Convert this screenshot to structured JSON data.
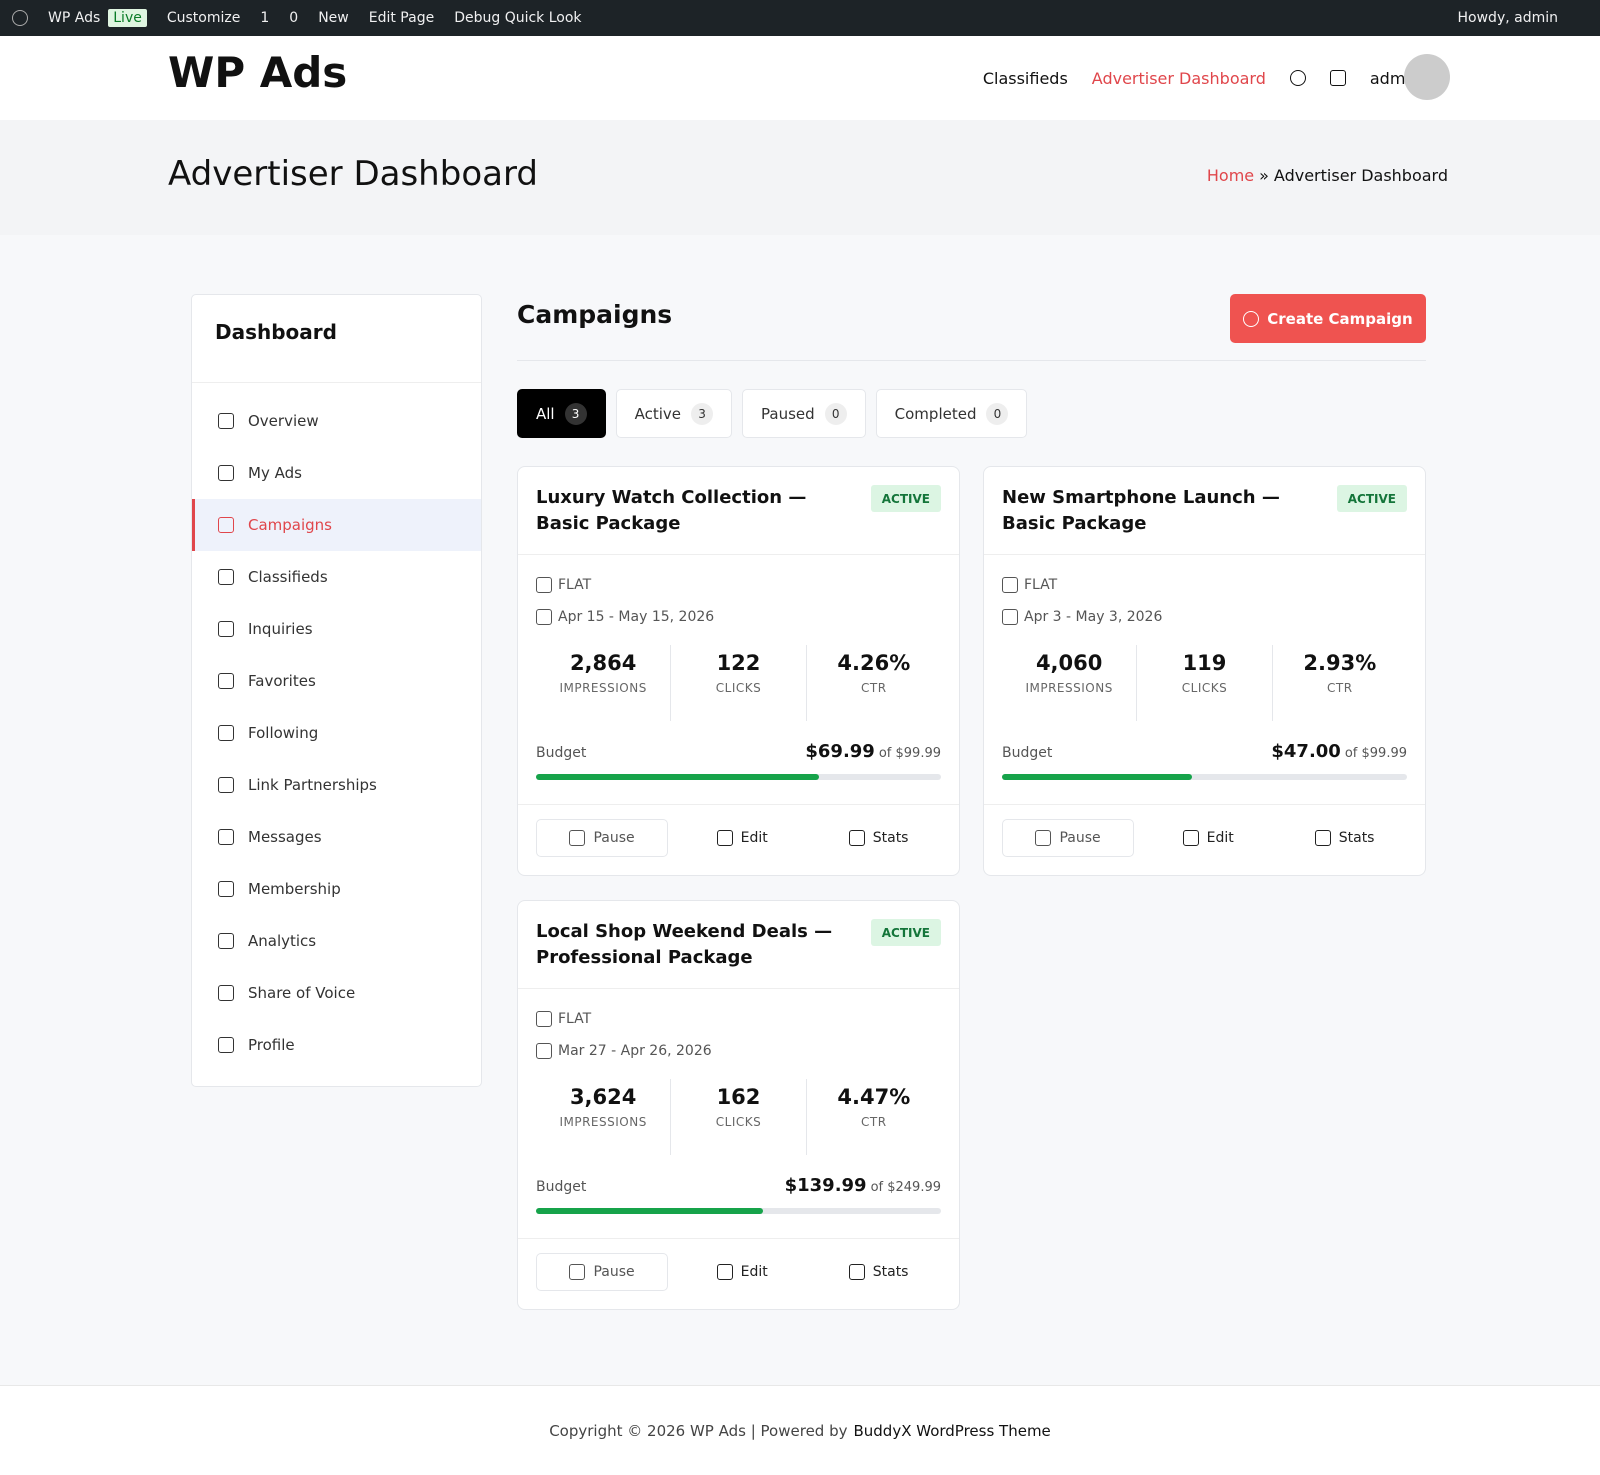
{
  "admin_bar": {
    "site": "WP Ads",
    "live": "Live",
    "customize": "Customize",
    "updates": "1",
    "comments": "0",
    "new": "New",
    "edit_page": "Edit Page",
    "debug": "Debug Quick Look",
    "greeting": "Howdy, admin"
  },
  "header": {
    "logo": "WP Ads",
    "nav": [
      "Classifieds",
      "Advertiser Dashboard"
    ],
    "active_nav": 1,
    "user": "admin"
  },
  "page_title": {
    "title": "Advertiser Dashboard",
    "breadcrumb": {
      "home": "Home",
      "separator": "»",
      "current": "Advertiser Dashboard"
    }
  },
  "sidebar": {
    "title": "Dashboard",
    "items": [
      "Overview",
      "My Ads",
      "Campaigns",
      "Classifieds",
      "Inquiries",
      "Favorites",
      "Following",
      "Link Partnerships",
      "Messages",
      "Membership",
      "Analytics",
      "Share of Voice",
      "Profile"
    ],
    "active": 2
  },
  "main": {
    "title": "Campaigns",
    "create_button": "Create Campaign",
    "tabs": [
      {
        "label": "All",
        "count": "3"
      },
      {
        "label": "Active",
        "count": "3"
      },
      {
        "label": "Paused",
        "count": "0"
      },
      {
        "label": "Completed",
        "count": "0"
      }
    ],
    "active_tab": 0,
    "campaigns": [
      {
        "title": "Luxury Watch Collection — Basic Package",
        "status": "ACTIVE",
        "type": "FLAT",
        "dates": "Apr 15 - May 15, 2026",
        "stats": [
          {
            "value": "2,864",
            "label": "IMPRESSIONS"
          },
          {
            "value": "122",
            "label": "CLICKS"
          },
          {
            "value": "4.26%",
            "label": "CTR"
          }
        ],
        "budget_label": "Budget",
        "budget": {
          "spent": {
            "value": 69.99,
            "label": "$69.99"
          },
          "total": {
            "value": 99.99,
            "label": "of $99.99"
          }
        },
        "actions": [
          "Pause",
          "Edit",
          "Stats"
        ]
      },
      {
        "title": "New Smartphone Launch — Basic Package",
        "status": "ACTIVE",
        "type": "FLAT",
        "dates": "Apr 3 - May 3, 2026",
        "stats": [
          {
            "value": "4,060",
            "label": "IMPRESSIONS"
          },
          {
            "value": "119",
            "label": "CLICKS"
          },
          {
            "value": "2.93%",
            "label": "CTR"
          }
        ],
        "budget_label": "Budget",
        "budget": {
          "spent": {
            "value": 47.0,
            "label": "$47.00"
          },
          "total": {
            "value": 99.99,
            "label": "of $99.99"
          }
        },
        "actions": [
          "Pause",
          "Edit",
          "Stats"
        ]
      },
      {
        "title": "Local Shop Weekend Deals — Professional Package",
        "status": "ACTIVE",
        "type": "FLAT",
        "dates": "Mar 27 - Apr 26, 2026",
        "stats": [
          {
            "value": "3,624",
            "label": "IMPRESSIONS"
          },
          {
            "value": "162",
            "label": "CLICKS"
          },
          {
            "value": "4.47%",
            "label": "CTR"
          }
        ],
        "budget_label": "Budget",
        "budget": {
          "spent": {
            "value": 139.99,
            "label": "$139.99"
          },
          "total": {
            "value": 249.99,
            "label": "of $249.99"
          }
        },
        "actions": [
          "Pause",
          "Edit",
          "Stats"
        ]
      }
    ]
  },
  "footer": {
    "text": "Copyright © 2026 WP Ads | Powered by",
    "link": "BuddyX WordPress Theme"
  }
}
